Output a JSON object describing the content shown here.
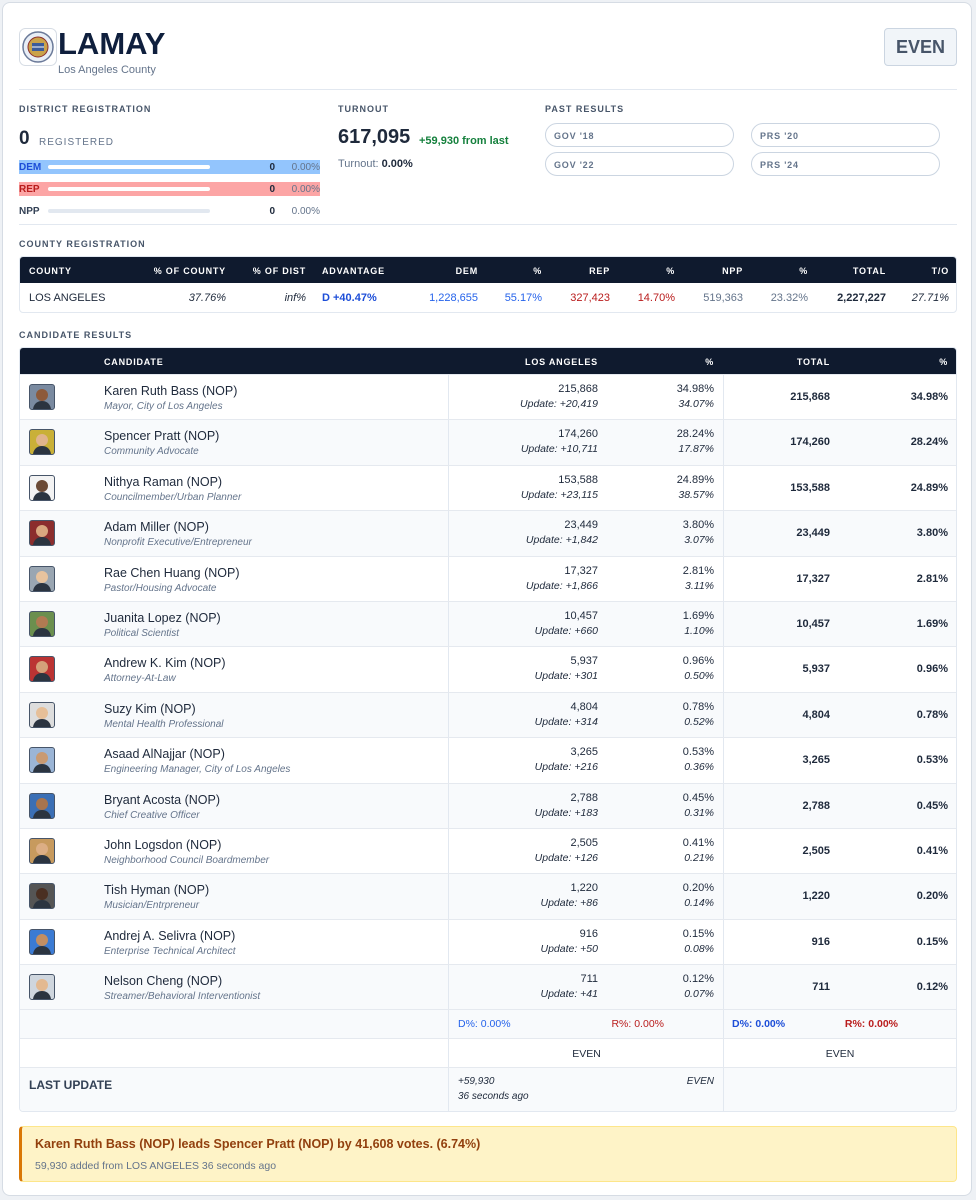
{
  "header": {
    "title": "LAMAY",
    "subtitle": "Los Angeles County",
    "badge": "EVEN"
  },
  "district_registration": {
    "label": "DISTRICT REGISTRATION",
    "count": "0",
    "count_label": "REGISTERED",
    "parties": [
      {
        "name": "DEM",
        "count": "0",
        "pct": "0.00%"
      },
      {
        "name": "REP",
        "count": "0",
        "pct": "0.00%"
      },
      {
        "name": "NPP",
        "count": "0",
        "pct": "0.00%"
      }
    ]
  },
  "turnout": {
    "label": "TURNOUT",
    "votes": "617,095",
    "change": "+59,930 from last",
    "rate_label": "Turnout:",
    "rate": "0.00%"
  },
  "past_results": {
    "label": "PAST RESULTS",
    "items": [
      "GOV '18",
      "PRS '20",
      "GOV '22",
      "PRS '24"
    ]
  },
  "county_registration": {
    "label": "COUNTY REGISTRATION",
    "columns": [
      "COUNTY",
      "% OF COUNTY",
      "% OF DIST",
      "ADVANTAGE",
      "DEM",
      "%",
      "REP",
      "%",
      "NPP",
      "%",
      "TOTAL",
      "T/O"
    ],
    "rows": [
      [
        "LOS ANGELES",
        "37.76%",
        "inf%",
        "D +40.47%",
        "1,228,655",
        "55.17%",
        "327,423",
        "14.70%",
        "519,363",
        "23.32%",
        "2,227,227",
        "27.71%"
      ]
    ]
  },
  "candidate_results": {
    "label": "CANDIDATE RESULTS",
    "columns": [
      "CANDIDATE",
      "LOS ANGELES",
      "%",
      "TOTAL",
      "%"
    ],
    "candidates": [
      {
        "name": "Karen Ruth Bass (NOP)",
        "occupation": "Mayor, City of Los Angeles",
        "votes": "215,868",
        "update": "Update: +20,419",
        "pct": "34.98%",
        "update_pct": "34.07%",
        "total": "215,868",
        "total_pct": "34.98%"
      },
      {
        "name": "Spencer Pratt (NOP)",
        "occupation": "Community Advocate",
        "votes": "174,260",
        "update": "Update: +10,711",
        "pct": "28.24%",
        "update_pct": "17.87%",
        "total": "174,260",
        "total_pct": "28.24%"
      },
      {
        "name": "Nithya Raman (NOP)",
        "occupation": "Councilmember/Urban Planner",
        "votes": "153,588",
        "update": "Update: +23,115",
        "pct": "24.89%",
        "update_pct": "38.57%",
        "total": "153,588",
        "total_pct": "24.89%"
      },
      {
        "name": "Adam Miller (NOP)",
        "occupation": "Nonprofit Executive/Entrepreneur",
        "votes": "23,449",
        "update": "Update: +1,842",
        "pct": "3.80%",
        "update_pct": "3.07%",
        "total": "23,449",
        "total_pct": "3.80%"
      },
      {
        "name": "Rae Chen Huang (NOP)",
        "occupation": "Pastor/Housing Advocate",
        "votes": "17,327",
        "update": "Update: +1,866",
        "pct": "2.81%",
        "update_pct": "3.11%",
        "total": "17,327",
        "total_pct": "2.81%"
      },
      {
        "name": "Juanita Lopez (NOP)",
        "occupation": "Political Scientist",
        "votes": "10,457",
        "update": "Update: +660",
        "pct": "1.69%",
        "update_pct": "1.10%",
        "total": "10,457",
        "total_pct": "1.69%"
      },
      {
        "name": "Andrew K. Kim (NOP)",
        "occupation": "Attorney-At-Law",
        "votes": "5,937",
        "update": "Update: +301",
        "pct": "0.96%",
        "update_pct": "0.50%",
        "total": "5,937",
        "total_pct": "0.96%"
      },
      {
        "name": "Suzy Kim (NOP)",
        "occupation": "Mental Health Professional",
        "votes": "4,804",
        "update": "Update: +314",
        "pct": "0.78%",
        "update_pct": "0.52%",
        "total": "4,804",
        "total_pct": "0.78%"
      },
      {
        "name": "Asaad AlNajjar (NOP)",
        "occupation": "Engineering Manager, City of Los Angeles",
        "votes": "3,265",
        "update": "Update: +216",
        "pct": "0.53%",
        "update_pct": "0.36%",
        "total": "3,265",
        "total_pct": "0.53%"
      },
      {
        "name": "Bryant Acosta (NOP)",
        "occupation": "Chief Creative Officer",
        "votes": "2,788",
        "update": "Update: +183",
        "pct": "0.45%",
        "update_pct": "0.31%",
        "total": "2,788",
        "total_pct": "0.45%"
      },
      {
        "name": "John Logsdon (NOP)",
        "occupation": "Neighborhood Council Boardmember",
        "votes": "2,505",
        "update": "Update: +126",
        "pct": "0.41%",
        "update_pct": "0.21%",
        "total": "2,505",
        "total_pct": "0.41%"
      },
      {
        "name": "Tish Hyman (NOP)",
        "occupation": "Musician/Entrpreneur",
        "votes": "1,220",
        "update": "Update: +86",
        "pct": "0.20%",
        "update_pct": "0.14%",
        "total": "1,220",
        "total_pct": "0.20%"
      },
      {
        "name": "Andrej A. Selivra (NOP)",
        "occupation": "Enterprise Technical Architect",
        "votes": "916",
        "update": "Update: +50",
        "pct": "0.15%",
        "update_pct": "0.08%",
        "total": "916",
        "total_pct": "0.15%"
      },
      {
        "name": "Nelson Cheng (NOP)",
        "occupation": "Streamer/Behavioral Interventionist",
        "votes": "711",
        "update": "Update: +41",
        "pct": "0.12%",
        "update_pct": "0.07%",
        "total": "711",
        "total_pct": "0.12%"
      }
    ],
    "summary": {
      "county_d": "D%: 0.00%",
      "county_r": "R%: 0.00%",
      "total_d": "D%: 0.00%",
      "total_r": "R%: 0.00%",
      "county_margin": "EVEN",
      "total_margin": "EVEN"
    },
    "last_update": {
      "label": "LAST UPDATE",
      "change": "+59,930",
      "time": "36 seconds ago",
      "margin": "EVEN"
    }
  },
  "alert": {
    "headline": "Karen Ruth Bass (NOP) leads Spencer Pratt (NOP) by 41,608 votes. (6.74%)",
    "detail": "59,930 added from LOS ANGELES 36 seconds ago"
  }
}
